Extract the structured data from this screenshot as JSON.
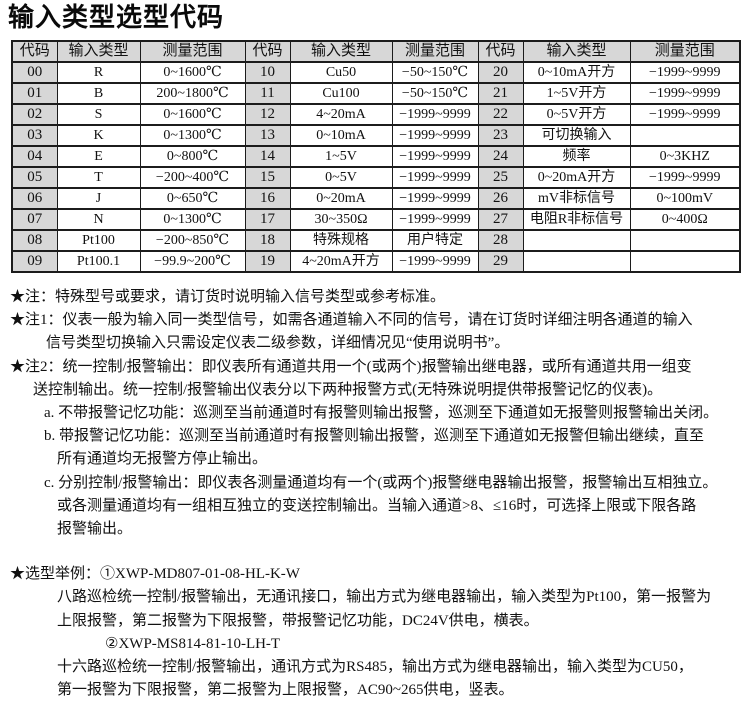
{
  "title": "输入类型选型代码",
  "colors": {
    "header_bg": "#d7d7d7",
    "border": "#1c1c1c",
    "text": "#111111"
  },
  "table": {
    "header_cells": [
      "代码",
      "输入类型",
      "测量范围",
      "代码",
      "输入类型",
      "测量范围",
      "代码",
      "输入类型",
      "测量范围"
    ],
    "rows": [
      [
        "00",
        "R",
        "0~1600℃",
        "10",
        "Cu50",
        "−50~150℃",
        "20",
        "0~10mA开方",
        "−1999~9999"
      ],
      [
        "01",
        "B",
        "200~1800℃",
        "11",
        "Cu100",
        "−50~150℃",
        "21",
        "1~5V开方",
        "−1999~9999"
      ],
      [
        "02",
        "S",
        "0~1600℃",
        "12",
        "4~20mA",
        "−1999~9999",
        "22",
        "0~5V开方",
        "−1999~9999"
      ],
      [
        "03",
        "K",
        "0~1300℃",
        "13",
        "0~10mA",
        "−1999~9999",
        "23",
        "可切换输入",
        ""
      ],
      [
        "04",
        "E",
        "0~800℃",
        "14",
        "1~5V",
        "−1999~9999",
        "24",
        "频率",
        "0~3KHZ"
      ],
      [
        "05",
        "T",
        "−200~400℃",
        "15",
        "0~5V",
        "−1999~9999",
        "25",
        "0~20mA开方",
        "−1999~9999"
      ],
      [
        "06",
        "J",
        "0~650℃",
        "16",
        "0~20mA",
        "−1999~9999",
        "26",
        "mV非标信号",
        "0~100mV"
      ],
      [
        "07",
        "N",
        "0~1300℃",
        "17",
        "30~350Ω",
        "−1999~9999",
        "27",
        "电阻R非标信号",
        "0~400Ω"
      ],
      [
        "08",
        "Pt100",
        "−200~850℃",
        "18",
        "特殊规格",
        "用户特定",
        "28",
        "",
        ""
      ],
      [
        "09",
        "Pt100.1",
        "−99.9~200℃",
        "19",
        "4~20mA开方",
        "−1999~9999",
        "29",
        "",
        ""
      ]
    ]
  },
  "notes": {
    "lines": [
      {
        "i": 0,
        "t": "★注：特殊型号或要求，请订货时说明输入信号类型或参考标准。"
      },
      {
        "i": 0,
        "t": "★注1：仪表一般为输入同一类型信号，如需各通道输入不同的信号，请在订货时详细注明各通道的输入"
      },
      {
        "i": 1,
        "t": "信号类型切换输入只需设定仪表二级参数，详细情况见“使用说明书”。"
      },
      {
        "i": 0,
        "t": "★注2：统一控制/报警输出：即仪表所有通道共用一个(或两个)报警输出继电器，或所有通道共用一组变"
      },
      {
        "i": 2,
        "t": "送控制输出。统一控制/报警输出仪表分以下两种报警方式(无特殊说明提供带报警记忆的仪表)。"
      },
      {
        "i": 3,
        "t": "a. 不带报警记忆功能：巡测至当前通道时有报警则输出报警，巡测至下通道如无报警则报警输出关闭。"
      },
      {
        "i": 3,
        "t": "b. 带报警记忆功能：巡测至当前通道时有报警则输出报警，巡测至下通道如无报警但输出继续，直至"
      },
      {
        "i": 4,
        "t": "所有通道均无报警方停止输出。"
      },
      {
        "i": 3,
        "t": "c. 分别控制/报警输出：即仪表各测量通道均有一个(或两个)报警继电器输出报警，报警输出互相独立。"
      },
      {
        "i": 4,
        "t": "或各测量通道均有一组相互独立的变送控制输出。当输入通道>8、≤16时，可选择上限或下限各路"
      },
      {
        "i": 4,
        "t": "报警输出。"
      }
    ]
  },
  "examples": {
    "lines": [
      {
        "i": 0,
        "t": "★选型举例：①XWP-MD807-01-08-HL-K-W"
      },
      {
        "i": 4,
        "t": "八路巡检统一控制/报警输出，无通讯接口，输出方式为继电器输出，输入类型为Pt100，第一报警为"
      },
      {
        "i": 4,
        "t": "上限报警，第二报警为下限报警，带报警记忆功能，DC24V供电，横表。"
      },
      {
        "i": 5,
        "t": "②XWP-MS814-81-10-LH-T"
      },
      {
        "i": 4,
        "t": "十六路巡检统一控制/报警输出，通讯方式为RS485，输出方式为继电器输出，输入类型为CU50，"
      },
      {
        "i": 4,
        "t": "第一报警为下限报警，第二报警为上限报警，AC90~265供电，竖表。"
      }
    ]
  }
}
